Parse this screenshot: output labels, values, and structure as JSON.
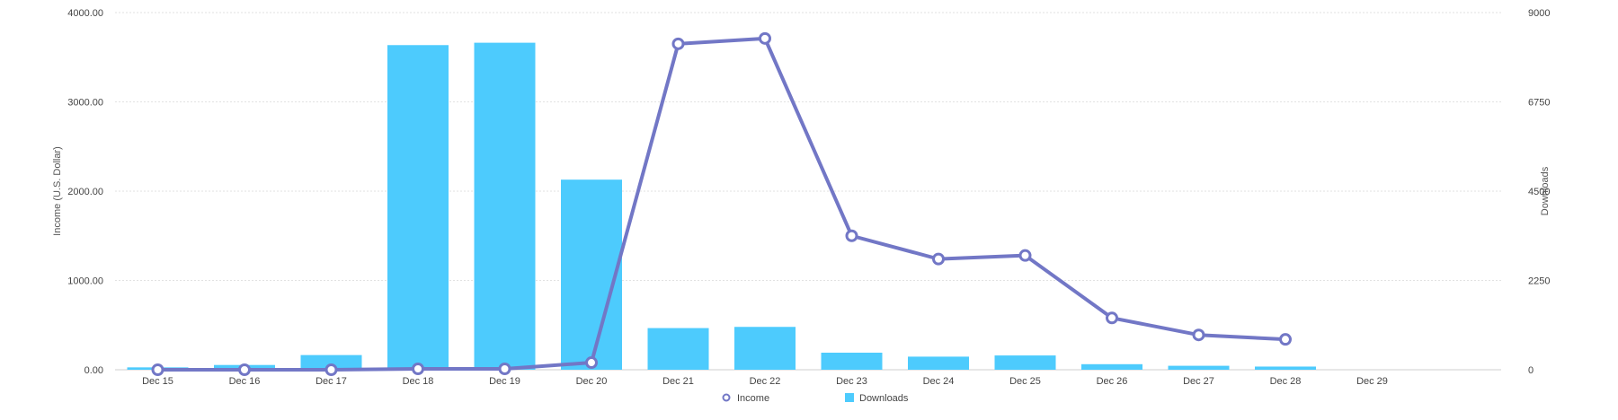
{
  "chart_data": {
    "type": "bar",
    "categories": [
      "Dec 15",
      "Dec 16",
      "Dec 17",
      "Dec 18",
      "Dec 19",
      "Dec 20",
      "Dec 21",
      "Dec 22",
      "Dec 23",
      "Dec 24",
      "Dec 25",
      "Dec 26",
      "Dec 27",
      "Dec 28",
      "Dec 29"
    ],
    "series": [
      {
        "name": "Downloads",
        "type": "bar",
        "axis": "right",
        "color": "#4dcbfd",
        "values": [
          60,
          120,
          370,
          8180,
          8240,
          4790,
          1050,
          1080,
          430,
          330,
          360,
          140,
          100,
          80,
          null
        ]
      },
      {
        "name": "Income",
        "type": "line",
        "axis": "left",
        "color": "#7277c6",
        "values": [
          0,
          0,
          0,
          10,
          10,
          80,
          3650,
          3710,
          1500,
          1240,
          1280,
          580,
          390,
          340,
          null
        ]
      }
    ],
    "yleft": {
      "label": "Income (U.S. Dollar)",
      "ticks": [
        "0.00",
        "1000.00",
        "2000.00",
        "3000.00",
        "4000.00"
      ],
      "ylim": [
        0,
        4000
      ]
    },
    "yright": {
      "label": "Downloads",
      "ticks": [
        "0",
        "2250",
        "4500",
        "6750",
        "9000"
      ],
      "ylim": [
        0,
        9000
      ]
    },
    "grid": true,
    "legend_position": "bottom-center"
  }
}
